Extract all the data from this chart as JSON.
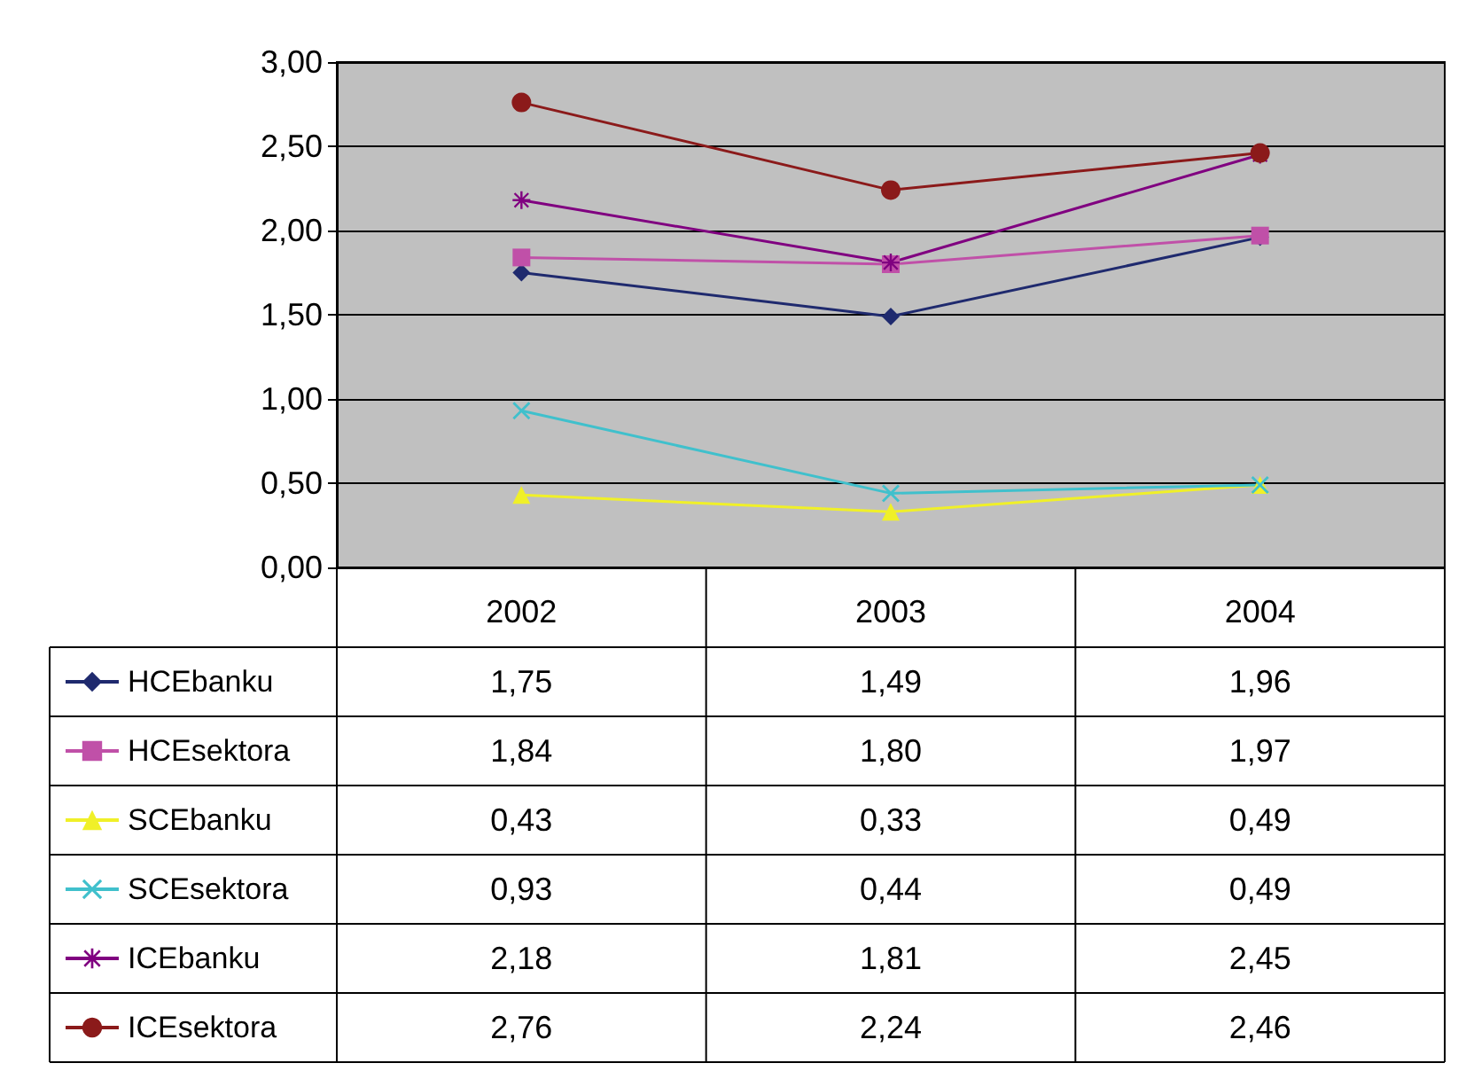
{
  "chart_data": {
    "type": "line",
    "categories": [
      "2002",
      "2003",
      "2004"
    ],
    "ylim": [
      0,
      3
    ],
    "yticks": [
      {
        "value": 0,
        "label": "0,00"
      },
      {
        "value": 0.5,
        "label": "0,50"
      },
      {
        "value": 1,
        "label": "1,00"
      },
      {
        "value": 1.5,
        "label": "1,50"
      },
      {
        "value": 2,
        "label": "2,00"
      },
      {
        "value": 2.5,
        "label": "2,50"
      },
      {
        "value": 3,
        "label": "3,00"
      }
    ],
    "grid": "y",
    "legend": "bottom",
    "series": [
      {
        "name": "HCEbanku",
        "color": "#1f2a6e",
        "marker": "diamond",
        "values": [
          1.75,
          1.49,
          1.96
        ],
        "value_labels": [
          "1,75",
          "1,49",
          "1,96"
        ]
      },
      {
        "name": "HCEsektora",
        "color": "#c050a8",
        "marker": "square",
        "values": [
          1.84,
          1.8,
          1.97
        ],
        "value_labels": [
          "1,84",
          "1,80",
          "1,97"
        ]
      },
      {
        "name": "SCEbanku",
        "color": "#f0f028",
        "marker": "triangle",
        "values": [
          0.43,
          0.33,
          0.49
        ],
        "value_labels": [
          "0,43",
          "0,33",
          "0,49"
        ]
      },
      {
        "name": "SCEsektora",
        "color": "#40c0cc",
        "marker": "cross",
        "values": [
          0.93,
          0.44,
          0.49
        ],
        "value_labels": [
          "0,93",
          "0,44",
          "0,49"
        ]
      },
      {
        "name": "ICEbanku",
        "color": "#800080",
        "marker": "star",
        "values": [
          2.18,
          1.81,
          2.45
        ],
        "value_labels": [
          "2,18",
          "1,81",
          "2,45"
        ]
      },
      {
        "name": "ICEsektora",
        "color": "#8b1a1a",
        "marker": "circle",
        "values": [
          2.76,
          2.24,
          2.46
        ],
        "value_labels": [
          "2,76",
          "2,24",
          "2,46"
        ]
      }
    ]
  }
}
